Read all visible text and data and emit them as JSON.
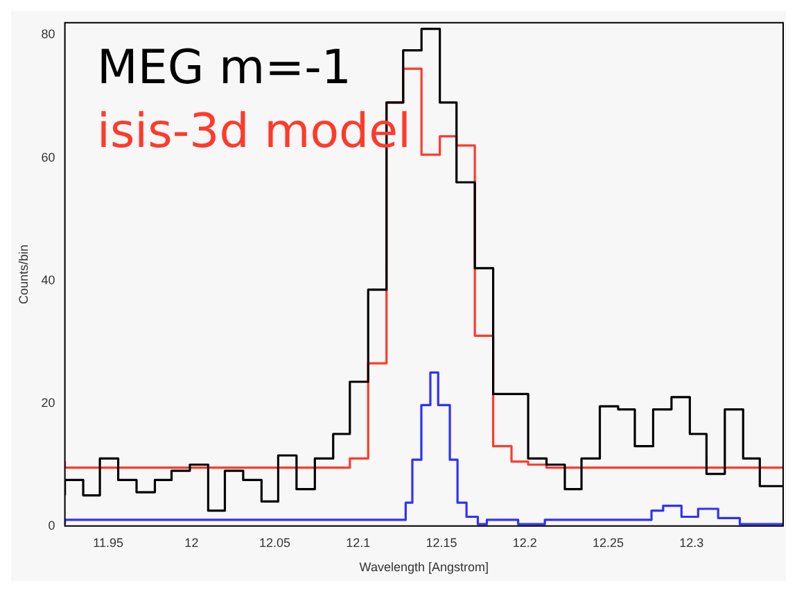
{
  "chart_data": {
    "type": "step",
    "xlabel": "Wavelength [Angstrom]",
    "ylabel": "Counts/bin",
    "xlim": [
      11.924,
      12.355
    ],
    "xticks": [
      11.95,
      12,
      12.05,
      12.1,
      12.15,
      12.2,
      12.25,
      12.3
    ],
    "ylim": [
      0,
      82
    ],
    "yticks": [
      0,
      20,
      40,
      60,
      80
    ],
    "grid": false,
    "series": [
      {
        "name": "MEG m=-1",
        "color": "#000000",
        "x": [
          11.924,
          11.935,
          11.945,
          11.956,
          11.967,
          11.978,
          11.988,
          11.999,
          12.01,
          12.02,
          12.031,
          12.042,
          12.052,
          12.063,
          12.074,
          12.085,
          12.095,
          12.106,
          12.117,
          12.127,
          12.138,
          12.149,
          12.159,
          12.17,
          12.181,
          12.192,
          12.202,
          12.213,
          12.224,
          12.234,
          12.245,
          12.256,
          12.266,
          12.277,
          12.288,
          12.299,
          12.309,
          12.32,
          12.331,
          12.341,
          12.352,
          12.355
        ],
        "values": [
          5,
          7.5,
          5,
          11,
          7.5,
          5.5,
          7.5,
          9,
          10,
          2.5,
          9,
          7.5,
          4,
          11.5,
          6,
          11,
          15,
          23.5,
          38.5,
          69,
          77.5,
          81,
          69,
          56,
          42,
          21.5,
          21.5,
          11,
          10,
          6,
          11,
          19.5,
          19,
          13,
          19,
          21,
          15,
          8.5,
          19,
          11,
          6.5,
          6.5
        ]
      },
      {
        "name": "isis-3d model",
        "color": "#ff3a2a",
        "x": [
          11.924,
          12.095,
          12.106,
          12.117,
          12.127,
          12.138,
          12.149,
          12.159,
          12.17,
          12.181,
          12.192,
          12.202,
          12.213,
          12.224,
          12.355
        ],
        "values": [
          10.5,
          9.5,
          11,
          26.5,
          69,
          74.5,
          60.5,
          63.5,
          62,
          31,
          13,
          10.5,
          10,
          9.5,
          9.5
        ]
      },
      {
        "color": "#3030ff",
        "x": [
          11.924,
          12.1285,
          12.1325,
          12.1379,
          12.1433,
          12.148,
          12.155,
          12.1596,
          12.165,
          12.1718,
          12.1772,
          12.196,
          12.212,
          12.276,
          12.283,
          12.294,
          12.304,
          12.316,
          12.329,
          12.34,
          12.355
        ],
        "values": [
          0.3,
          1,
          3.8,
          10.8,
          19.7,
          25,
          19.7,
          10.8,
          3.8,
          1.5,
          0.3,
          1,
          0.3,
          1,
          2.5,
          3.3,
          1.5,
          2.8,
          1.3,
          0.3,
          0.3
        ]
      }
    ]
  }
}
